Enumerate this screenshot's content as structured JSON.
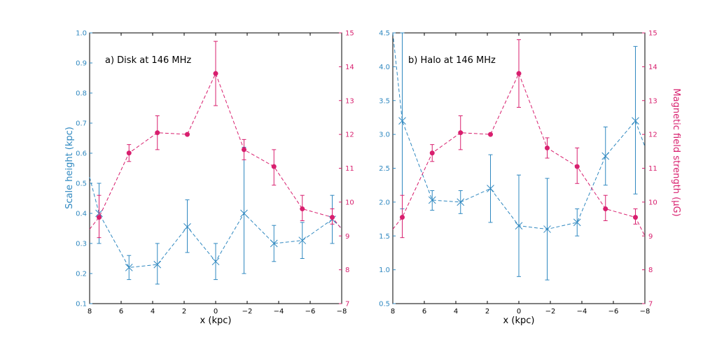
{
  "colors": {
    "blue": "#2f88c0",
    "red": "#d81f6e",
    "black": "#000000"
  },
  "shared": {
    "xlabel": "x (kpc)",
    "x_ticks": [
      "8",
      "6",
      "4",
      "2",
      "0",
      "−2",
      "−4",
      "−6",
      "−8"
    ],
    "xlim": [
      8,
      -8
    ],
    "y2lim": [
      7,
      15
    ],
    "y2_ticks": [
      "7",
      "8",
      "9",
      "10",
      "11",
      "12",
      "13",
      "14",
      "15"
    ],
    "y2label": "Magnetic field strength (μG)"
  },
  "chart_data": [
    {
      "type": "line",
      "title": "a) Disk at 146 MHz",
      "xlabel": "x (kpc)",
      "ylabel": "Scale height (kpc)",
      "ylim": [
        0.1,
        1.0
      ],
      "y_ticks": [
        "0.1",
        "0.2",
        "0.3",
        "0.4",
        "0.5",
        "0.6",
        "0.7",
        "0.8",
        "0.9",
        "1.0"
      ],
      "y2label": "",
      "series": [
        {
          "name": "Scale height",
          "axis": "left",
          "marker": "x",
          "x": [
            7.4,
            5.5,
            3.7,
            1.8,
            0.0,
            -1.8,
            -3.7,
            -5.5,
            -7.4
          ],
          "y": [
            0.4,
            0.22,
            0.23,
            0.355,
            0.24,
            0.4,
            0.3,
            0.31,
            0.38
          ],
          "yerr_low": [
            0.3,
            0.18,
            0.165,
            0.27,
            0.18,
            0.2,
            0.24,
            0.25,
            0.3
          ],
          "yerr_high": [
            0.5,
            0.26,
            0.3,
            0.445,
            0.3,
            0.62,
            0.36,
            0.37,
            0.46
          ],
          "lead_in": [
            [
              8.0,
              0.52
            ]
          ],
          "lead_out": [
            [
              -8.0,
              0.35
            ]
          ]
        },
        {
          "name": "Magnetic field strength",
          "axis": "right",
          "marker": "dot",
          "x": [
            7.4,
            5.5,
            3.7,
            1.8,
            0.0,
            -1.8,
            -3.7,
            -5.5,
            -7.4
          ],
          "y": [
            9.55,
            11.45,
            12.05,
            12.0,
            13.8,
            11.55,
            11.05,
            9.8,
            9.55
          ],
          "yerr_low": [
            8.95,
            11.2,
            11.55,
            12.0,
            12.85,
            11.25,
            10.5,
            9.45,
            9.35
          ],
          "yerr_high": [
            10.2,
            11.7,
            12.55,
            12.0,
            14.75,
            11.85,
            11.55,
            10.2,
            9.8
          ],
          "lead_in": [
            [
              8.0,
              9.2
            ]
          ],
          "lead_out": [
            [
              -8.0,
              9.2
            ]
          ]
        }
      ]
    },
    {
      "type": "line",
      "title": "b) Halo at 146 MHz",
      "xlabel": "x (kpc)",
      "ylabel": "",
      "ylim": [
        0.5,
        4.5
      ],
      "y_ticks": [
        "0.5",
        "1.0",
        "1.5",
        "2.0",
        "2.5",
        "3.0",
        "3.5",
        "4.0",
        "4.5"
      ],
      "y2label": "Magnetic field strength (μG)",
      "series": [
        {
          "name": "Scale height",
          "axis": "left",
          "marker": "x",
          "x": [
            7.4,
            5.5,
            3.7,
            1.8,
            0.0,
            -1.8,
            -3.7,
            -5.5,
            -7.4
          ],
          "y": [
            3.2,
            2.03,
            2.0,
            2.2,
            1.65,
            1.6,
            1.7,
            2.68,
            3.2
          ],
          "yerr_low": [
            1.9,
            1.88,
            1.83,
            1.7,
            0.9,
            0.85,
            1.5,
            2.25,
            2.12
          ],
          "yerr_high": [
            4.5,
            2.17,
            2.17,
            2.7,
            2.4,
            2.35,
            1.9,
            3.11,
            4.3
          ],
          "lead_in": [
            [
              8.0,
              4.5
            ]
          ],
          "lead_out": [
            [
              -8.0,
              2.82
            ]
          ]
        },
        {
          "name": "Magnetic field strength",
          "axis": "right",
          "marker": "dot",
          "x": [
            7.4,
            5.5,
            3.7,
            1.8,
            0.0,
            -1.8,
            -3.7,
            -5.5,
            -7.4
          ],
          "y": [
            9.55,
            11.45,
            12.05,
            12.0,
            13.8,
            11.6,
            11.05,
            9.8,
            9.55
          ],
          "yerr_low": [
            8.95,
            11.2,
            11.55,
            12.0,
            12.8,
            11.3,
            10.55,
            9.45,
            9.35
          ],
          "yerr_high": [
            10.2,
            11.7,
            12.55,
            12.0,
            14.8,
            11.9,
            11.6,
            10.2,
            9.8
          ],
          "lead_in": [
            [
              8.0,
              9.2
            ]
          ],
          "lead_out": [
            [
              -8.0,
              9.0
            ]
          ]
        }
      ]
    }
  ]
}
